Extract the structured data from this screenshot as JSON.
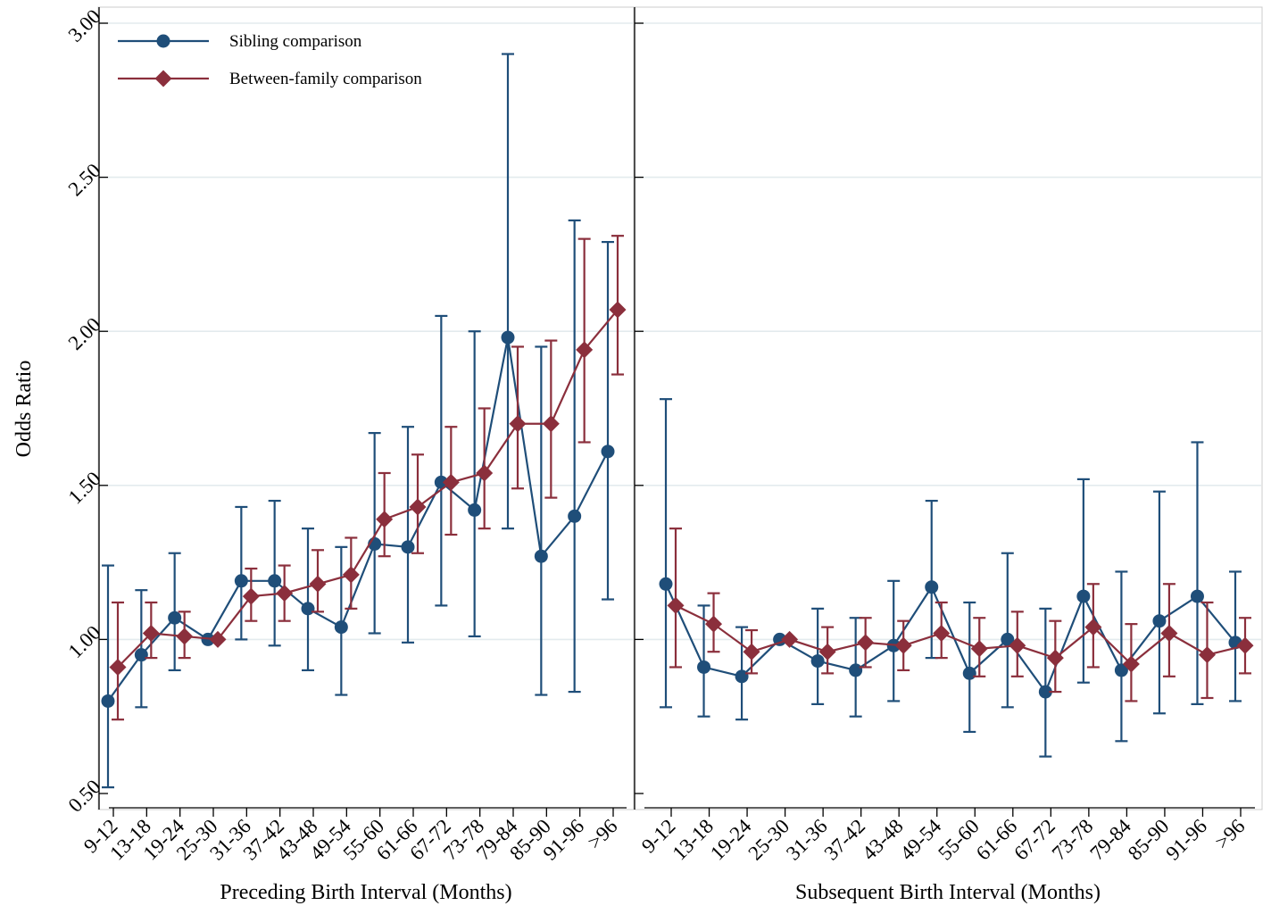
{
  "chart_data": [
    {
      "type": "line",
      "panel": "left",
      "xlabel": "Preceding Birth Interval (Months)",
      "ylabel": "Odds Ratio",
      "ylim": [
        0.5,
        3.0
      ],
      "yticks": [
        "0.50",
        "1.00",
        "1.50",
        "2.00",
        "2.50",
        "3.00"
      ],
      "grid": true,
      "legend_position": "top-left",
      "categories": [
        "9-12",
        "13-18",
        "19-24",
        "25-30",
        "31-36",
        "37-42",
        "43-48",
        "49-54",
        "55-60",
        "61-66",
        "67-72",
        "73-78",
        "79-84",
        "85-90",
        "91-96",
        ">96"
      ],
      "series": [
        {
          "name": "Sibling comparison",
          "color": "#1f4e79",
          "marker": "circle",
          "values": [
            0.8,
            0.95,
            1.07,
            1.0,
            1.19,
            1.19,
            1.1,
            1.04,
            1.31,
            1.3,
            1.51,
            1.42,
            1.98,
            1.27,
            1.4,
            1.61
          ],
          "lower": [
            0.52,
            0.78,
            0.9,
            1.0,
            1.0,
            0.98,
            0.9,
            0.82,
            1.02,
            0.99,
            1.11,
            1.01,
            1.36,
            0.82,
            0.83,
            1.13
          ],
          "upper": [
            1.24,
            1.16,
            1.28,
            1.0,
            1.43,
            1.45,
            1.36,
            1.3,
            1.67,
            1.69,
            2.05,
            2.0,
            2.9,
            1.95,
            2.36,
            2.29
          ]
        },
        {
          "name": "Between-family comparison",
          "color": "#8b2f3c",
          "marker": "diamond",
          "values": [
            0.91,
            1.02,
            1.01,
            1.0,
            1.14,
            1.15,
            1.18,
            1.21,
            1.39,
            1.43,
            1.51,
            1.54,
            1.7,
            1.7,
            1.94,
            2.07
          ],
          "lower": [
            0.74,
            0.94,
            0.94,
            1.0,
            1.06,
            1.06,
            1.09,
            1.1,
            1.27,
            1.28,
            1.34,
            1.36,
            1.49,
            1.46,
            1.64,
            1.86
          ],
          "upper": [
            1.12,
            1.12,
            1.09,
            1.0,
            1.23,
            1.24,
            1.29,
            1.33,
            1.54,
            1.6,
            1.69,
            1.75,
            1.95,
            1.97,
            2.3,
            2.31
          ]
        }
      ]
    },
    {
      "type": "line",
      "panel": "right",
      "xlabel": "Subsequent Birth Interval (Months)",
      "ylabel": "",
      "ylim": [
        0.5,
        3.0
      ],
      "grid": true,
      "categories": [
        "9-12",
        "13-18",
        "19-24",
        "25-30",
        "31-36",
        "37-42",
        "43-48",
        "49-54",
        "55-60",
        "61-66",
        "67-72",
        "73-78",
        "79-84",
        "85-90",
        "91-96",
        ">96"
      ],
      "series": [
        {
          "name": "Sibling comparison",
          "color": "#1f4e79",
          "marker": "circle",
          "values": [
            1.18,
            0.91,
            0.88,
            1.0,
            0.93,
            0.9,
            0.98,
            1.17,
            0.89,
            1.0,
            0.83,
            1.14,
            0.9,
            1.06,
            1.14,
            0.99
          ],
          "lower": [
            0.78,
            0.75,
            0.74,
            1.0,
            0.79,
            0.75,
            0.8,
            0.94,
            0.7,
            0.78,
            0.62,
            0.86,
            0.67,
            0.76,
            0.79,
            0.8
          ],
          "upper": [
            1.78,
            1.11,
            1.04,
            1.0,
            1.1,
            1.07,
            1.19,
            1.45,
            1.12,
            1.28,
            1.1,
            1.52,
            1.22,
            1.48,
            1.64,
            1.22
          ]
        },
        {
          "name": "Between-family comparison",
          "color": "#8b2f3c",
          "marker": "diamond",
          "values": [
            1.11,
            1.05,
            0.96,
            1.0,
            0.96,
            0.99,
            0.98,
            1.02,
            0.97,
            0.98,
            0.94,
            1.04,
            0.92,
            1.02,
            0.95,
            0.98
          ],
          "lower": [
            0.91,
            0.96,
            0.89,
            1.0,
            0.89,
            0.91,
            0.9,
            0.94,
            0.88,
            0.88,
            0.83,
            0.91,
            0.8,
            0.88,
            0.81,
            0.89
          ],
          "upper": [
            1.36,
            1.15,
            1.03,
            1.0,
            1.04,
            1.07,
            1.06,
            1.12,
            1.07,
            1.09,
            1.06,
            1.18,
            1.05,
            1.18,
            1.12,
            1.07
          ]
        }
      ]
    }
  ]
}
